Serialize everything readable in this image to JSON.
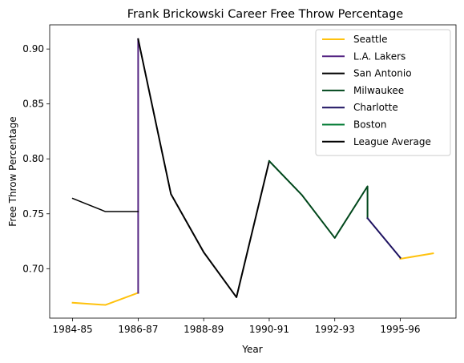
{
  "chart_data": {
    "type": "line",
    "title": "Frank Brickowski Career Free Throw Percentage",
    "xlabel": "Year",
    "ylabel": "Free Throw Percentage",
    "xlim": [
      -0.7,
      11.7
    ],
    "ylim": [
      0.655,
      0.922
    ],
    "x_ticks": [
      {
        "pos": 0,
        "label": "1984-85"
      },
      {
        "pos": 2,
        "label": "1986-87"
      },
      {
        "pos": 4,
        "label": "1988-89"
      },
      {
        "pos": 6,
        "label": "1990-91"
      },
      {
        "pos": 8,
        "label": "1992-93"
      },
      {
        "pos": 10,
        "label": "1995-96"
      }
    ],
    "y_ticks": [
      {
        "value": 0.7,
        "label": "0.70"
      },
      {
        "value": 0.75,
        "label": "0.75"
      },
      {
        "value": 0.8,
        "label": "0.80"
      },
      {
        "value": 0.85,
        "label": "0.85"
      },
      {
        "value": 0.9,
        "label": "0.90"
      }
    ],
    "grid": false,
    "legend_position": "top-right",
    "series": [
      {
        "name": "Seattle",
        "color": "#FFC20E",
        "points": [
          [
            0,
            0.669
          ],
          [
            1,
            0.667
          ],
          [
            2,
            0.678
          ]
        ]
      },
      {
        "name": "Seattle",
        "color": "#FFC20E",
        "legend": false,
        "points": [
          [
            10,
            0.709
          ],
          [
            11,
            0.714
          ]
        ]
      },
      {
        "name": "L.A. Lakers",
        "color": "#552583",
        "points": [
          [
            2,
            0.678
          ],
          [
            2,
            0.909
          ]
        ]
      },
      {
        "name": "San Antonio",
        "color": "#000000",
        "points": [
          [
            2,
            0.909
          ],
          [
            3,
            0.768
          ],
          [
            4,
            0.715
          ],
          [
            5,
            0.674
          ],
          [
            6,
            0.798
          ]
        ]
      },
      {
        "name": "Milwaukee",
        "color": "#00471B",
        "points": [
          [
            6,
            0.798
          ],
          [
            7,
            0.767
          ],
          [
            8,
            0.728
          ],
          [
            9,
            0.775
          ],
          [
            9,
            0.746
          ]
        ]
      },
      {
        "name": "Charlotte",
        "color": "#1D1160",
        "points": [
          [
            9,
            0.746
          ],
          [
            10,
            0.71
          ]
        ]
      },
      {
        "name": "Boston",
        "color": "#007A33",
        "points": []
      },
      {
        "name": "League Average",
        "color": "#000000",
        "width": 1.5,
        "points": [
          [
            0,
            0.764
          ],
          [
            1,
            0.752
          ],
          [
            2,
            0.752
          ]
        ]
      }
    ]
  }
}
